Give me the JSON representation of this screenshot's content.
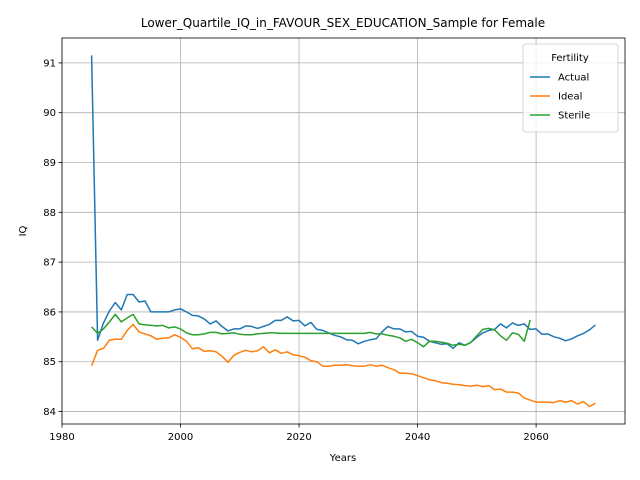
{
  "chart_data": {
    "type": "line",
    "title": "Lower_Quartile_IQ_in_FAVOUR_SEX_EDUCATION_Sample for Female",
    "xlabel": "Years",
    "ylabel": "IQ",
    "xlim": [
      1980,
      2075
    ],
    "ylim": [
      83.75,
      91.5
    ],
    "xticks": [
      1980,
      2000,
      2020,
      2040,
      2060
    ],
    "yticks": [
      84,
      85,
      86,
      87,
      88,
      89,
      90,
      91
    ],
    "grid": true,
    "legend": {
      "title": "Fertility",
      "placement": "upper right"
    },
    "series": [
      {
        "name": "Actual",
        "color": "#1f77b4",
        "x": [
          1985,
          1986,
          1987,
          1988,
          1989,
          1990,
          1991,
          1992,
          1993,
          1994,
          1995,
          1996,
          1997,
          1998,
          1999,
          2000,
          2001,
          2002,
          2003,
          2004,
          2005,
          2006,
          2007,
          2008,
          2009,
          2010,
          2011,
          2012,
          2013,
          2014,
          2015,
          2016,
          2017,
          2018,
          2019,
          2020,
          2021,
          2022,
          2023,
          2024,
          2025,
          2026,
          2027,
          2028,
          2029,
          2030,
          2031,
          2032,
          2033,
          2034,
          2035,
          2036,
          2037,
          2038,
          2039,
          2040,
          2041,
          2042,
          2043,
          2044,
          2045,
          2046,
          2047,
          2048,
          2049,
          2050,
          2051,
          2052,
          2053,
          2054,
          2055,
          2056,
          2057,
          2058,
          2059,
          2060,
          2061,
          2062,
          2063,
          2064,
          2065,
          2066,
          2067,
          2068,
          2069,
          2070
        ],
        "y": [
          91.15,
          85.43,
          85.78,
          86.02,
          86.19,
          86.04,
          86.35,
          86.35,
          86.2,
          86.22,
          86.0,
          86.0,
          86.0,
          86.0,
          86.04,
          86.06,
          86.0,
          85.93,
          85.92,
          85.86,
          85.76,
          85.82,
          85.71,
          85.62,
          85.66,
          85.66,
          85.72,
          85.71,
          85.67,
          85.71,
          85.75,
          85.83,
          85.83,
          85.9,
          85.82,
          85.83,
          85.72,
          85.79,
          85.65,
          85.63,
          85.58,
          85.53,
          85.5,
          85.44,
          85.43,
          85.36,
          85.41,
          85.44,
          85.46,
          85.6,
          85.71,
          85.66,
          85.66,
          85.6,
          85.61,
          85.51,
          85.49,
          85.41,
          85.38,
          85.35,
          85.36,
          85.27,
          85.38,
          85.33,
          85.39,
          85.49,
          85.58,
          85.63,
          85.65,
          85.76,
          85.68,
          85.78,
          85.73,
          85.76,
          85.65,
          85.66,
          85.55,
          85.56,
          85.5,
          85.47,
          85.42,
          85.46,
          85.52,
          85.57,
          85.64,
          85.74
        ]
      },
      {
        "name": "Ideal",
        "color": "#ff7f0e",
        "x": [
          1985,
          1986,
          1987,
          1988,
          1989,
          1990,
          1991,
          1992,
          1993,
          1994,
          1995,
          1996,
          1997,
          1998,
          1999,
          2000,
          2001,
          2002,
          2003,
          2004,
          2005,
          2006,
          2007,
          2008,
          2009,
          2010,
          2011,
          2012,
          2013,
          2014,
          2015,
          2016,
          2017,
          2018,
          2019,
          2020,
          2021,
          2022,
          2023,
          2024,
          2025,
          2026,
          2027,
          2028,
          2029,
          2030,
          2031,
          2032,
          2033,
          2034,
          2035,
          2036,
          2037,
          2038,
          2039,
          2040,
          2041,
          2042,
          2043,
          2044,
          2045,
          2046,
          2047,
          2048,
          2049,
          2050,
          2051,
          2052,
          2053,
          2054,
          2055,
          2056,
          2057,
          2058,
          2059,
          2060,
          2061,
          2062,
          2063,
          2064,
          2065,
          2066,
          2067,
          2068,
          2069,
          2070
        ],
        "y": [
          84.92,
          85.23,
          85.27,
          85.43,
          85.45,
          85.45,
          85.63,
          85.75,
          85.6,
          85.56,
          85.52,
          85.45,
          85.47,
          85.48,
          85.54,
          85.49,
          85.41,
          85.26,
          85.28,
          85.21,
          85.22,
          85.2,
          85.11,
          84.99,
          85.13,
          85.19,
          85.23,
          85.2,
          85.22,
          85.3,
          85.18,
          85.24,
          85.17,
          85.2,
          85.14,
          85.12,
          85.09,
          85.02,
          85.0,
          84.91,
          84.91,
          84.93,
          84.93,
          84.94,
          84.92,
          84.91,
          84.91,
          84.94,
          84.91,
          84.93,
          84.88,
          84.84,
          84.77,
          84.77,
          84.76,
          84.72,
          84.68,
          84.64,
          84.62,
          84.58,
          84.57,
          84.55,
          84.54,
          84.52,
          84.51,
          84.53,
          84.5,
          84.52,
          84.44,
          84.45,
          84.39,
          84.39,
          84.37,
          84.27,
          84.23,
          84.19,
          84.19,
          84.19,
          84.18,
          84.22,
          84.19,
          84.22,
          84.15,
          84.2,
          84.1,
          84.17
        ]
      },
      {
        "name": "Sterile",
        "color": "#2ca02c",
        "x": [
          1985,
          1986,
          1987,
          1988,
          1989,
          1990,
          1991,
          1992,
          1993,
          1994,
          1995,
          1996,
          1997,
          1998,
          1999,
          2000,
          2001,
          2002,
          2003,
          2004,
          2005,
          2006,
          2007,
          2008,
          2009,
          2010,
          2011,
          2012,
          2013,
          2014,
          2015,
          2016,
          2017,
          2018,
          2019,
          2020,
          2021,
          2022,
          2023,
          2024,
          2025,
          2026,
          2027,
          2028,
          2029,
          2030,
          2031,
          2032,
          2033,
          2034,
          2035,
          2036,
          2037,
          2038,
          2039,
          2040,
          2041,
          2042,
          2043,
          2044,
          2045,
          2046,
          2047,
          2048,
          2049,
          2050,
          2051,
          2052,
          2053,
          2054,
          2055,
          2056,
          2057,
          2058,
          2059
        ],
        "y": [
          85.7,
          85.57,
          85.66,
          85.8,
          85.95,
          85.8,
          85.88,
          85.95,
          85.76,
          85.74,
          85.73,
          85.72,
          85.73,
          85.68,
          85.7,
          85.66,
          85.58,
          85.54,
          85.54,
          85.56,
          85.59,
          85.59,
          85.56,
          85.57,
          85.58,
          85.55,
          85.54,
          85.54,
          85.56,
          85.57,
          85.58,
          85.58,
          85.57,
          85.57,
          85.57,
          85.57,
          85.57,
          85.57,
          85.57,
          85.57,
          85.57,
          85.57,
          85.57,
          85.57,
          85.57,
          85.57,
          85.57,
          85.59,
          85.56,
          85.56,
          85.53,
          85.51,
          85.48,
          85.41,
          85.45,
          85.38,
          85.3,
          85.41,
          85.41,
          85.39,
          85.37,
          85.33,
          85.35,
          85.33,
          85.39,
          85.52,
          85.65,
          85.67,
          85.64,
          85.52,
          85.43,
          85.58,
          85.55,
          85.41,
          85.84
        ]
      }
    ]
  }
}
